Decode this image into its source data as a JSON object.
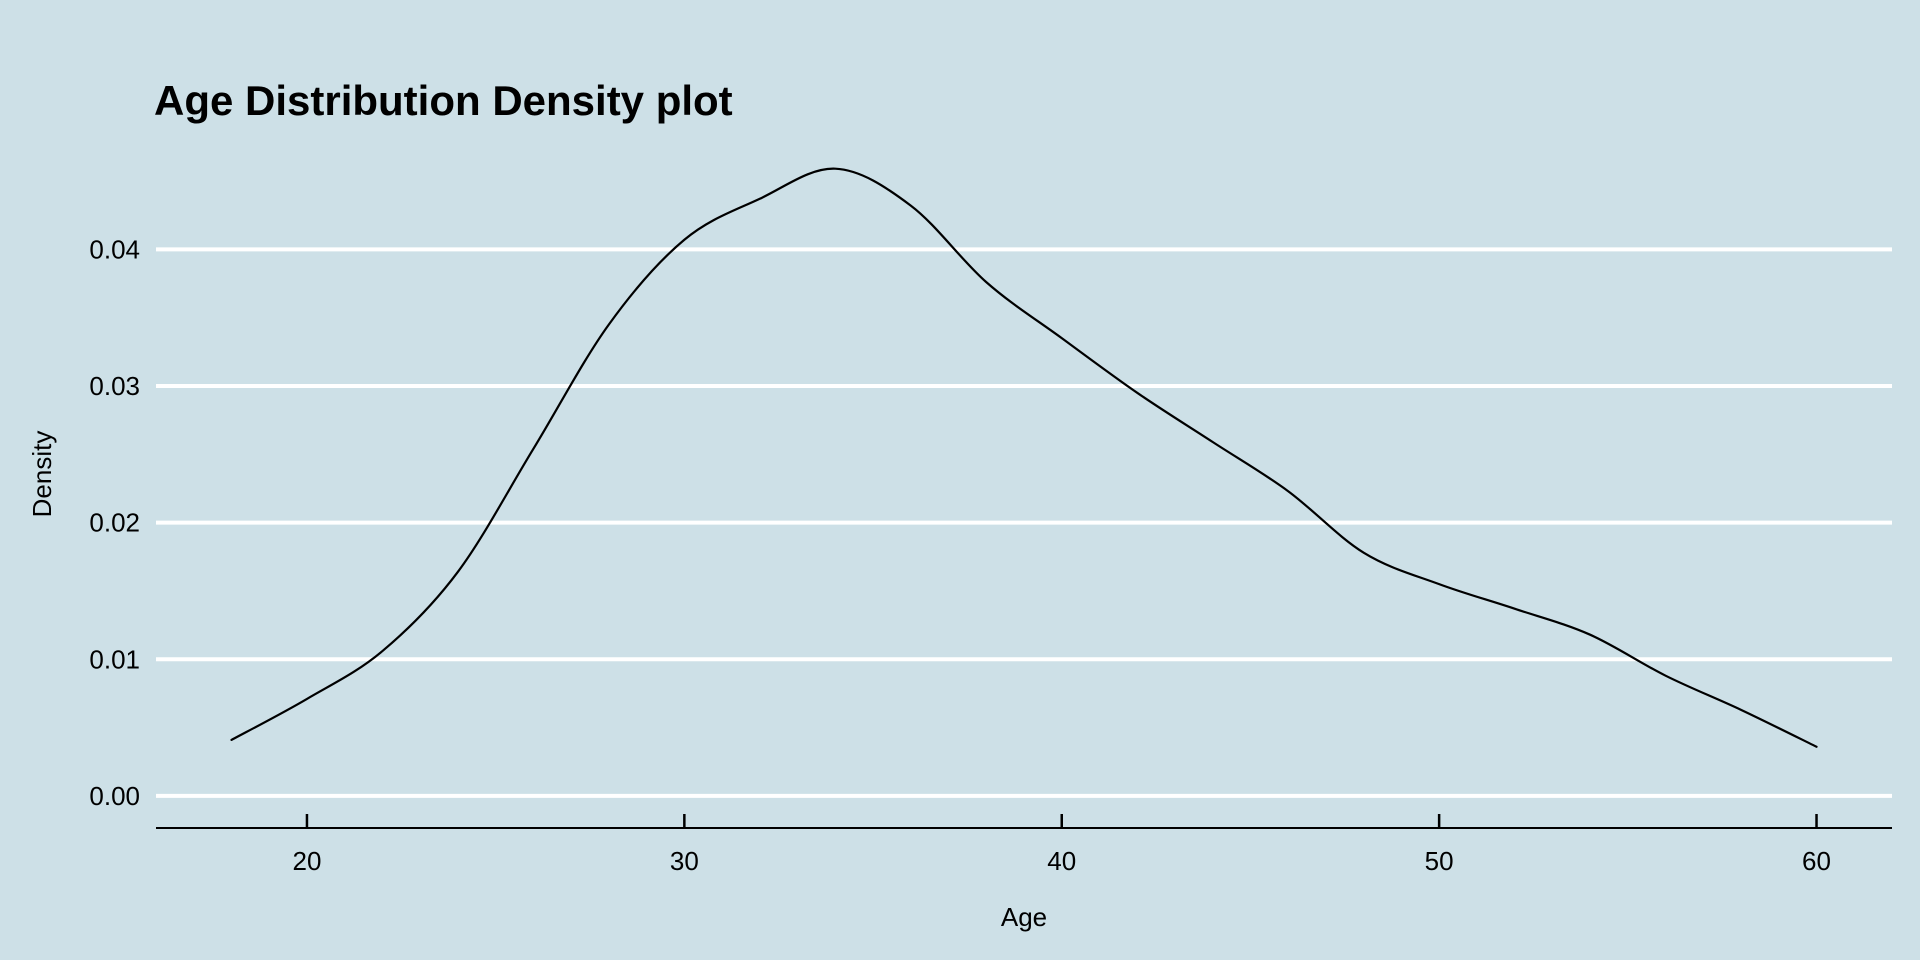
{
  "chart_data": {
    "type": "line",
    "title": "Age Distribution Density plot",
    "xlabel": "Age",
    "ylabel": "Density",
    "xlim": [
      16,
      62
    ],
    "ylim": [
      -0.0022,
      0.048
    ],
    "x_ticks": [
      20,
      30,
      40,
      50,
      60
    ],
    "x_tick_labels": [
      "20",
      "30",
      "40",
      "50",
      "60"
    ],
    "y_ticks": [
      0,
      0.01,
      0.02,
      0.03,
      0.04
    ],
    "y_tick_labels": [
      "0.00",
      "0.01",
      "0.02",
      "0.03",
      "0.04"
    ],
    "grid": "horizontal-major",
    "legend": "none",
    "colors": {
      "background": "#cde0e7",
      "gridline": "#ffffff",
      "line": "#000000"
    },
    "series": [
      {
        "x": [
          18,
          20,
          22,
          24,
          26,
          28,
          30,
          32,
          34,
          36,
          38,
          40,
          42,
          44,
          46,
          48,
          50,
          52,
          54,
          56,
          58,
          60
        ],
        "values": [
          0.0041,
          0.0071,
          0.0106,
          0.0164,
          0.0254,
          0.0345,
          0.0407,
          0.0437,
          0.0459,
          0.0432,
          0.0376,
          0.0335,
          0.0295,
          0.0259,
          0.0223,
          0.0178,
          0.0155,
          0.0137,
          0.0118,
          0.0088,
          0.0063,
          0.0036
        ]
      }
    ]
  }
}
